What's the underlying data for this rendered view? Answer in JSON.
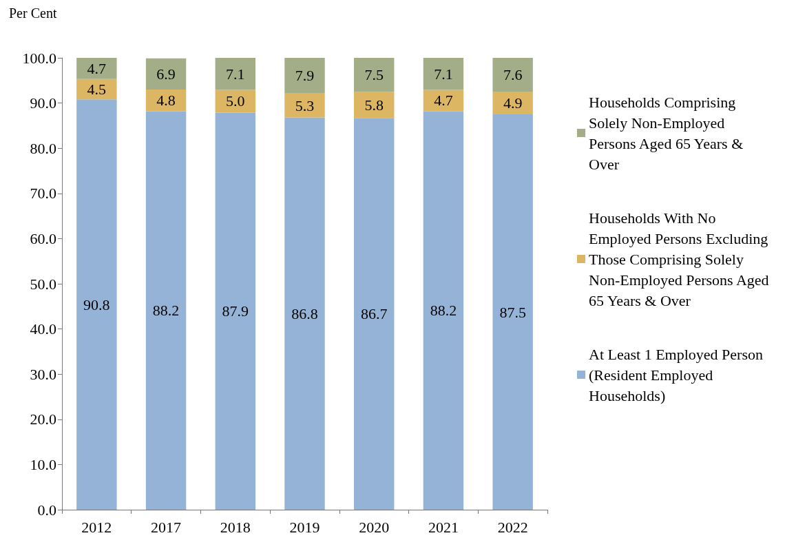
{
  "chart_data": {
    "type": "bar",
    "ylabel": "Per Cent",
    "stacked": true,
    "grid": false,
    "legend": "right",
    "categories": [
      "2012",
      "2017",
      "2018",
      "2019",
      "2020",
      "2021",
      "2022"
    ],
    "ylim": [
      0,
      100
    ],
    "yticks": [
      {
        "value": 0,
        "label": "0.0"
      },
      {
        "value": 10,
        "label": "10.0"
      },
      {
        "value": 20,
        "label": "20.0"
      },
      {
        "value": 30,
        "label": "30.0"
      },
      {
        "value": 40,
        "label": "40.0"
      },
      {
        "value": 50,
        "label": "50.0"
      },
      {
        "value": 60,
        "label": "60.0"
      },
      {
        "value": 70,
        "label": "70.0"
      },
      {
        "value": 80,
        "label": "80.0"
      },
      {
        "value": 90,
        "label": "90.0"
      },
      {
        "value": 100,
        "label": "100.0"
      }
    ],
    "series": [
      {
        "name": "At Least 1 Employed Person (Resident Employed Households)",
        "color": "#95b3d7",
        "values": [
          90.8,
          88.2,
          87.9,
          86.8,
          86.7,
          88.2,
          87.5
        ],
        "value_labels": [
          "90.8",
          "88.2",
          "87.9",
          "86.8",
          "86.7",
          "88.2",
          "87.5"
        ]
      },
      {
        "name": "Households With No Employed Persons Excluding Those Comprising Solely Non-Employed Persons Aged 65 Years & Over",
        "color": "#dcb662",
        "values": [
          4.5,
          4.8,
          5.0,
          5.3,
          5.8,
          4.7,
          4.9
        ],
        "value_labels": [
          "4.5",
          "4.8",
          "5.0",
          "5.3",
          "5.8",
          "4.7",
          "4.9"
        ]
      },
      {
        "name": "Households Comprising Solely Non-Employed Persons Aged 65 Years & Over",
        "color": "#a3ad87",
        "values": [
          4.7,
          6.9,
          7.1,
          7.9,
          7.5,
          7.1,
          7.6
        ],
        "value_labels": [
          "4.7",
          "6.9",
          "7.1",
          "7.9",
          "7.5",
          "7.1",
          "7.6"
        ]
      }
    ]
  }
}
